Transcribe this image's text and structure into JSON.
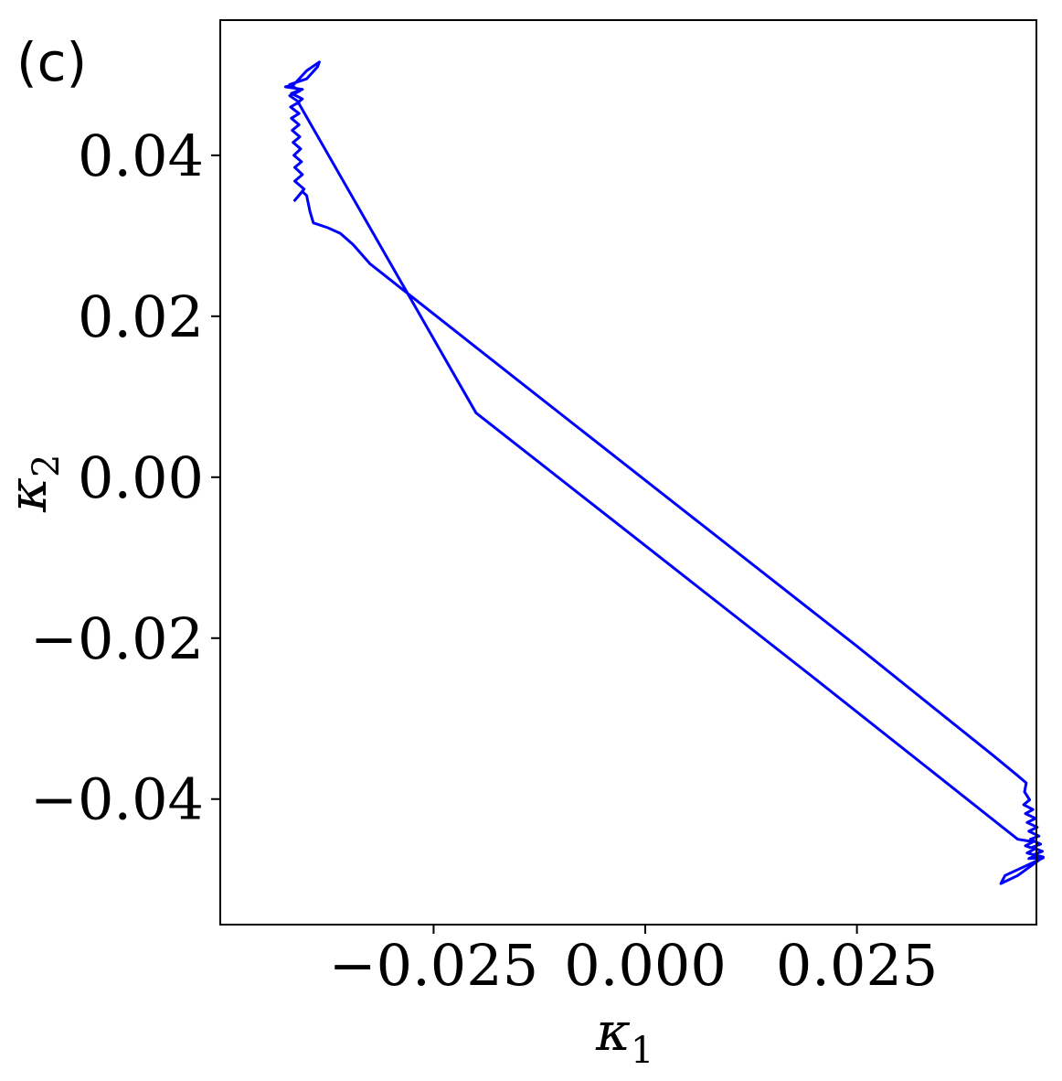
{
  "chart_data": {
    "type": "line",
    "panel_label": "(c)",
    "xlabel": "κ",
    "xlabel_sub": "1",
    "ylabel": "κ",
    "ylabel_sub": "2",
    "xlim": [
      -0.0502,
      0.0462
    ],
    "ylim": [
      -0.0556,
      0.0568
    ],
    "xticks": [
      -0.025,
      0.0,
      0.025
    ],
    "xtick_labels": [
      "−0.025",
      "0.000",
      "0.025"
    ],
    "yticks": [
      -0.04,
      -0.02,
      0.0,
      0.02,
      0.04
    ],
    "ytick_labels": [
      "−0.04",
      "−0.02",
      "0.00",
      "0.02",
      "0.04"
    ],
    "grid": false,
    "line_color": "#0000ff",
    "series": [
      {
        "name": "",
        "points": [
          [
            -0.0414,
            0.0344
          ],
          [
            -0.0405,
            0.0355
          ],
          [
            -0.04,
            0.035
          ],
          [
            -0.0396,
            0.033
          ],
          [
            -0.0392,
            0.0316
          ],
          [
            -0.0375,
            0.031
          ],
          [
            -0.036,
            0.0303
          ],
          [
            -0.0345,
            0.0289
          ],
          [
            -0.0325,
            0.0265
          ],
          [
            -0.015,
            0.012
          ],
          [
            0.005,
            -0.0045
          ],
          [
            0.025,
            -0.021
          ],
          [
            0.041,
            -0.0345
          ],
          [
            0.044,
            -0.0371
          ],
          [
            0.045,
            -0.038
          ],
          [
            0.0448,
            -0.0391
          ],
          [
            0.0454,
            -0.0401
          ],
          [
            0.0447,
            -0.0407
          ],
          [
            0.0458,
            -0.0413
          ],
          [
            0.0449,
            -0.0418
          ],
          [
            0.0461,
            -0.0424
          ],
          [
            0.0451,
            -0.0429
          ],
          [
            0.0463,
            -0.0435
          ],
          [
            0.0453,
            -0.044
          ],
          [
            0.0465,
            -0.0446
          ],
          [
            0.0455,
            -0.045
          ],
          [
            0.0467,
            -0.0456
          ],
          [
            0.0457,
            -0.046
          ],
          [
            0.0469,
            -0.0465
          ],
          [
            0.0459,
            -0.0469
          ],
          [
            0.047,
            -0.0472
          ],
          [
            0.044,
            -0.0495
          ],
          [
            0.042,
            -0.0505
          ],
          [
            0.0425,
            -0.0495
          ],
          [
            0.047,
            -0.0473
          ],
          [
            0.0453,
            -0.0474
          ],
          [
            0.0462,
            -0.047
          ],
          [
            0.0451,
            -0.0467
          ],
          [
            0.046,
            -0.0462
          ],
          [
            0.0449,
            -0.0458
          ],
          [
            0.0458,
            -0.0453
          ],
          [
            0.044,
            -0.045
          ],
          [
            0.02,
            -0.025
          ],
          [
            0.0,
            -0.0085
          ],
          [
            -0.02,
            0.008
          ],
          [
            -0.041,
            0.0466
          ],
          [
            -0.0405,
            0.047
          ],
          [
            -0.0418,
            0.0477
          ],
          [
            -0.0405,
            0.0482
          ],
          [
            -0.0425,
            0.0485
          ],
          [
            -0.0415,
            0.0488
          ],
          [
            -0.04,
            0.0505
          ],
          [
            -0.0385,
            0.0516
          ],
          [
            -0.0387,
            0.051
          ],
          [
            -0.04,
            0.0495
          ],
          [
            -0.042,
            0.0488
          ],
          [
            -0.0408,
            0.048
          ],
          [
            -0.042,
            0.0474
          ],
          [
            -0.0409,
            0.0466
          ],
          [
            -0.0419,
            0.046
          ],
          [
            -0.0409,
            0.0452
          ],
          [
            -0.0418,
            0.0446
          ],
          [
            -0.0409,
            0.0438
          ],
          [
            -0.0417,
            0.0431
          ],
          [
            -0.0408,
            0.0423
          ],
          [
            -0.0416,
            0.0416
          ],
          [
            -0.0407,
            0.0408
          ],
          [
            -0.0415,
            0.04
          ],
          [
            -0.0406,
            0.0392
          ],
          [
            -0.0414,
            0.0385
          ],
          [
            -0.0405,
            0.0376
          ],
          [
            -0.0414,
            0.0368
          ],
          [
            -0.0403,
            0.0358
          ],
          [
            -0.0414,
            0.0344
          ]
        ]
      }
    ]
  }
}
